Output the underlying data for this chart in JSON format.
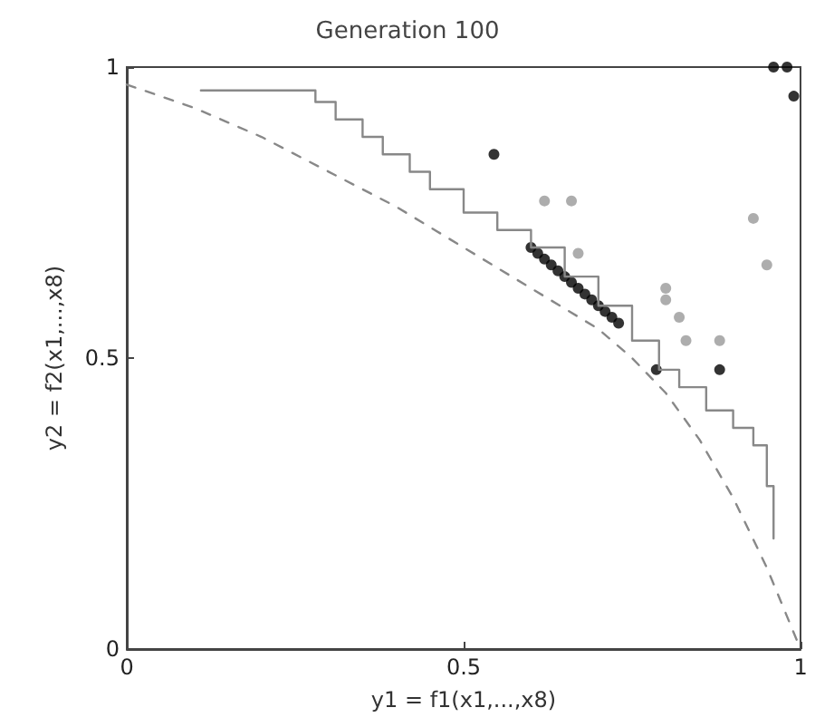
{
  "chart_data": {
    "type": "scatter",
    "title": "Generation 100",
    "xlabel": "y1 = f1(x1,...,x8)",
    "ylabel": "y2 = f2(x1,...,x8)",
    "xlim": [
      0,
      1
    ],
    "ylim": [
      0,
      1
    ],
    "xticks": [
      0,
      0.5,
      1
    ],
    "yticks": [
      0,
      0.5,
      1
    ],
    "grid": false,
    "series": [
      {
        "type": "line",
        "color": "#888888",
        "line_style": "dashed",
        "marker": "none",
        "x": [
          0,
          0.1,
          0.2,
          0.3,
          0.4,
          0.5,
          0.6,
          0.7,
          0.75,
          0.8,
          0.85,
          0.9,
          0.95,
          1
        ],
        "values": [
          0.97,
          0.93,
          0.88,
          0.82,
          0.76,
          0.69,
          0.62,
          0.55,
          0.5,
          0.44,
          0.36,
          0.26,
          0.14,
          0
        ]
      },
      {
        "type": "step",
        "color": "#888888",
        "line_style": "solid",
        "marker": "none",
        "x": [
          0.11,
          0.28,
          0.31,
          0.35,
          0.38,
          0.42,
          0.45,
          0.5,
          0.55,
          0.6,
          0.65,
          0.7,
          0.75,
          0.79,
          0.82,
          0.86,
          0.9,
          0.93,
          0.95,
          0.96
        ],
        "values": [
          0.96,
          0.94,
          0.91,
          0.88,
          0.85,
          0.82,
          0.79,
          0.75,
          0.72,
          0.69,
          0.64,
          0.59,
          0.53,
          0.48,
          0.45,
          0.41,
          0.38,
          0.35,
          0.28,
          0.19
        ]
      },
      {
        "color": "#999999",
        "marker": "circle",
        "x": [
          0.62,
          0.66,
          0.67,
          0.8,
          0.8,
          0.82,
          0.83,
          0.88,
          0.93,
          0.95
        ],
        "values": [
          0.77,
          0.77,
          0.68,
          0.62,
          0.6,
          0.57,
          0.53,
          0.53,
          0.74,
          0.66
        ]
      },
      {
        "color": "#000000",
        "marker": "circle",
        "x": [
          0.545,
          0.6,
          0.61,
          0.62,
          0.63,
          0.64,
          0.65,
          0.66,
          0.67,
          0.68,
          0.69,
          0.7,
          0.71,
          0.72,
          0.73,
          0.786,
          0.88,
          0.96,
          0.98,
          0.99
        ],
        "values": [
          0.85,
          0.69,
          0.68,
          0.67,
          0.66,
          0.65,
          0.64,
          0.63,
          0.62,
          0.61,
          0.6,
          0.59,
          0.58,
          0.57,
          0.56,
          0.48,
          0.48,
          1,
          1,
          0.95
        ]
      }
    ]
  }
}
